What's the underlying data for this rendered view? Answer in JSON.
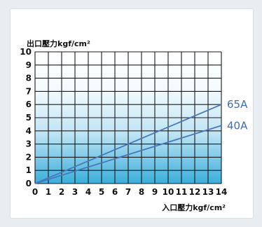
{
  "chart_data": {
    "type": "line",
    "title": "",
    "xlabel": "入口壓力kgf/cm²",
    "ylabel": "出口壓力kgf/cm²",
    "xlim": [
      0,
      14
    ],
    "ylim": [
      0,
      10
    ],
    "x_ticks": [
      "0",
      "1",
      "2",
      "3",
      "4",
      "5",
      "6",
      "7",
      "8",
      "9",
      "10",
      "11",
      "12",
      "13",
      "14"
    ],
    "y_ticks": [
      "0",
      "1",
      "2",
      "3",
      "4",
      "5",
      "6",
      "7",
      "8",
      "9",
      "10"
    ],
    "grid": true,
    "background": "vertical gradient, light blue at bottom to white at top",
    "series": [
      {
        "name": "65A",
        "color": "#4a78bb",
        "x": [
          0,
          14
        ],
        "y": [
          0,
          6
        ]
      },
      {
        "name": "40A",
        "color": "#4a78bb",
        "x": [
          0,
          14
        ],
        "y": [
          0,
          4.4
        ]
      }
    ]
  }
}
